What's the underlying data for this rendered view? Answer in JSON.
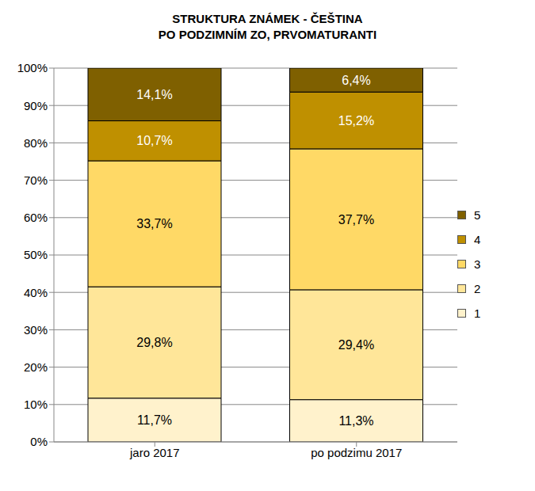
{
  "chart_data": {
    "type": "bar",
    "title": "STRUKTURA ZNÁMEK - ČEŠTINA\nPO PODZIMNÍM ZO, PRVOMATURANTI",
    "categories": [
      "jaro 2017",
      "po podzimu 2017"
    ],
    "series": [
      {
        "name": "1",
        "color": "#fff2cc",
        "values": [
          11.7,
          11.3
        ],
        "value_labels": [
          "11,7%",
          "11,3%"
        ]
      },
      {
        "name": "2",
        "color": "#ffe699",
        "values": [
          29.8,
          29.4
        ],
        "value_labels": [
          "29,8%",
          "29,4%"
        ]
      },
      {
        "name": "3",
        "color": "#ffd966",
        "values": [
          33.7,
          37.7
        ],
        "value_labels": [
          "33,7%",
          "37,7%"
        ]
      },
      {
        "name": "4",
        "color": "#bf9000",
        "values": [
          10.7,
          15.2
        ],
        "value_labels": [
          "10,7%",
          "15,2%"
        ]
      },
      {
        "name": "5",
        "color": "#7f6000",
        "values": [
          14.1,
          6.4
        ],
        "value_labels": [
          "14,1%",
          "6,4%"
        ]
      }
    ],
    "stacked": true,
    "data_labels": true,
    "grid": true,
    "legend": "right",
    "ylim": [
      0,
      100
    ],
    "yticks": [
      {
        "value": 0,
        "label": "0%"
      },
      {
        "value": 10,
        "label": "10%"
      },
      {
        "value": 20,
        "label": "20%"
      },
      {
        "value": 30,
        "label": "30%"
      },
      {
        "value": 40,
        "label": "40%"
      },
      {
        "value": 50,
        "label": "50%"
      },
      {
        "value": 60,
        "label": "60%"
      },
      {
        "value": 70,
        "label": "70%"
      },
      {
        "value": 80,
        "label": "80%"
      },
      {
        "value": 90,
        "label": "90%"
      },
      {
        "value": 100,
        "label": "100%"
      }
    ]
  }
}
